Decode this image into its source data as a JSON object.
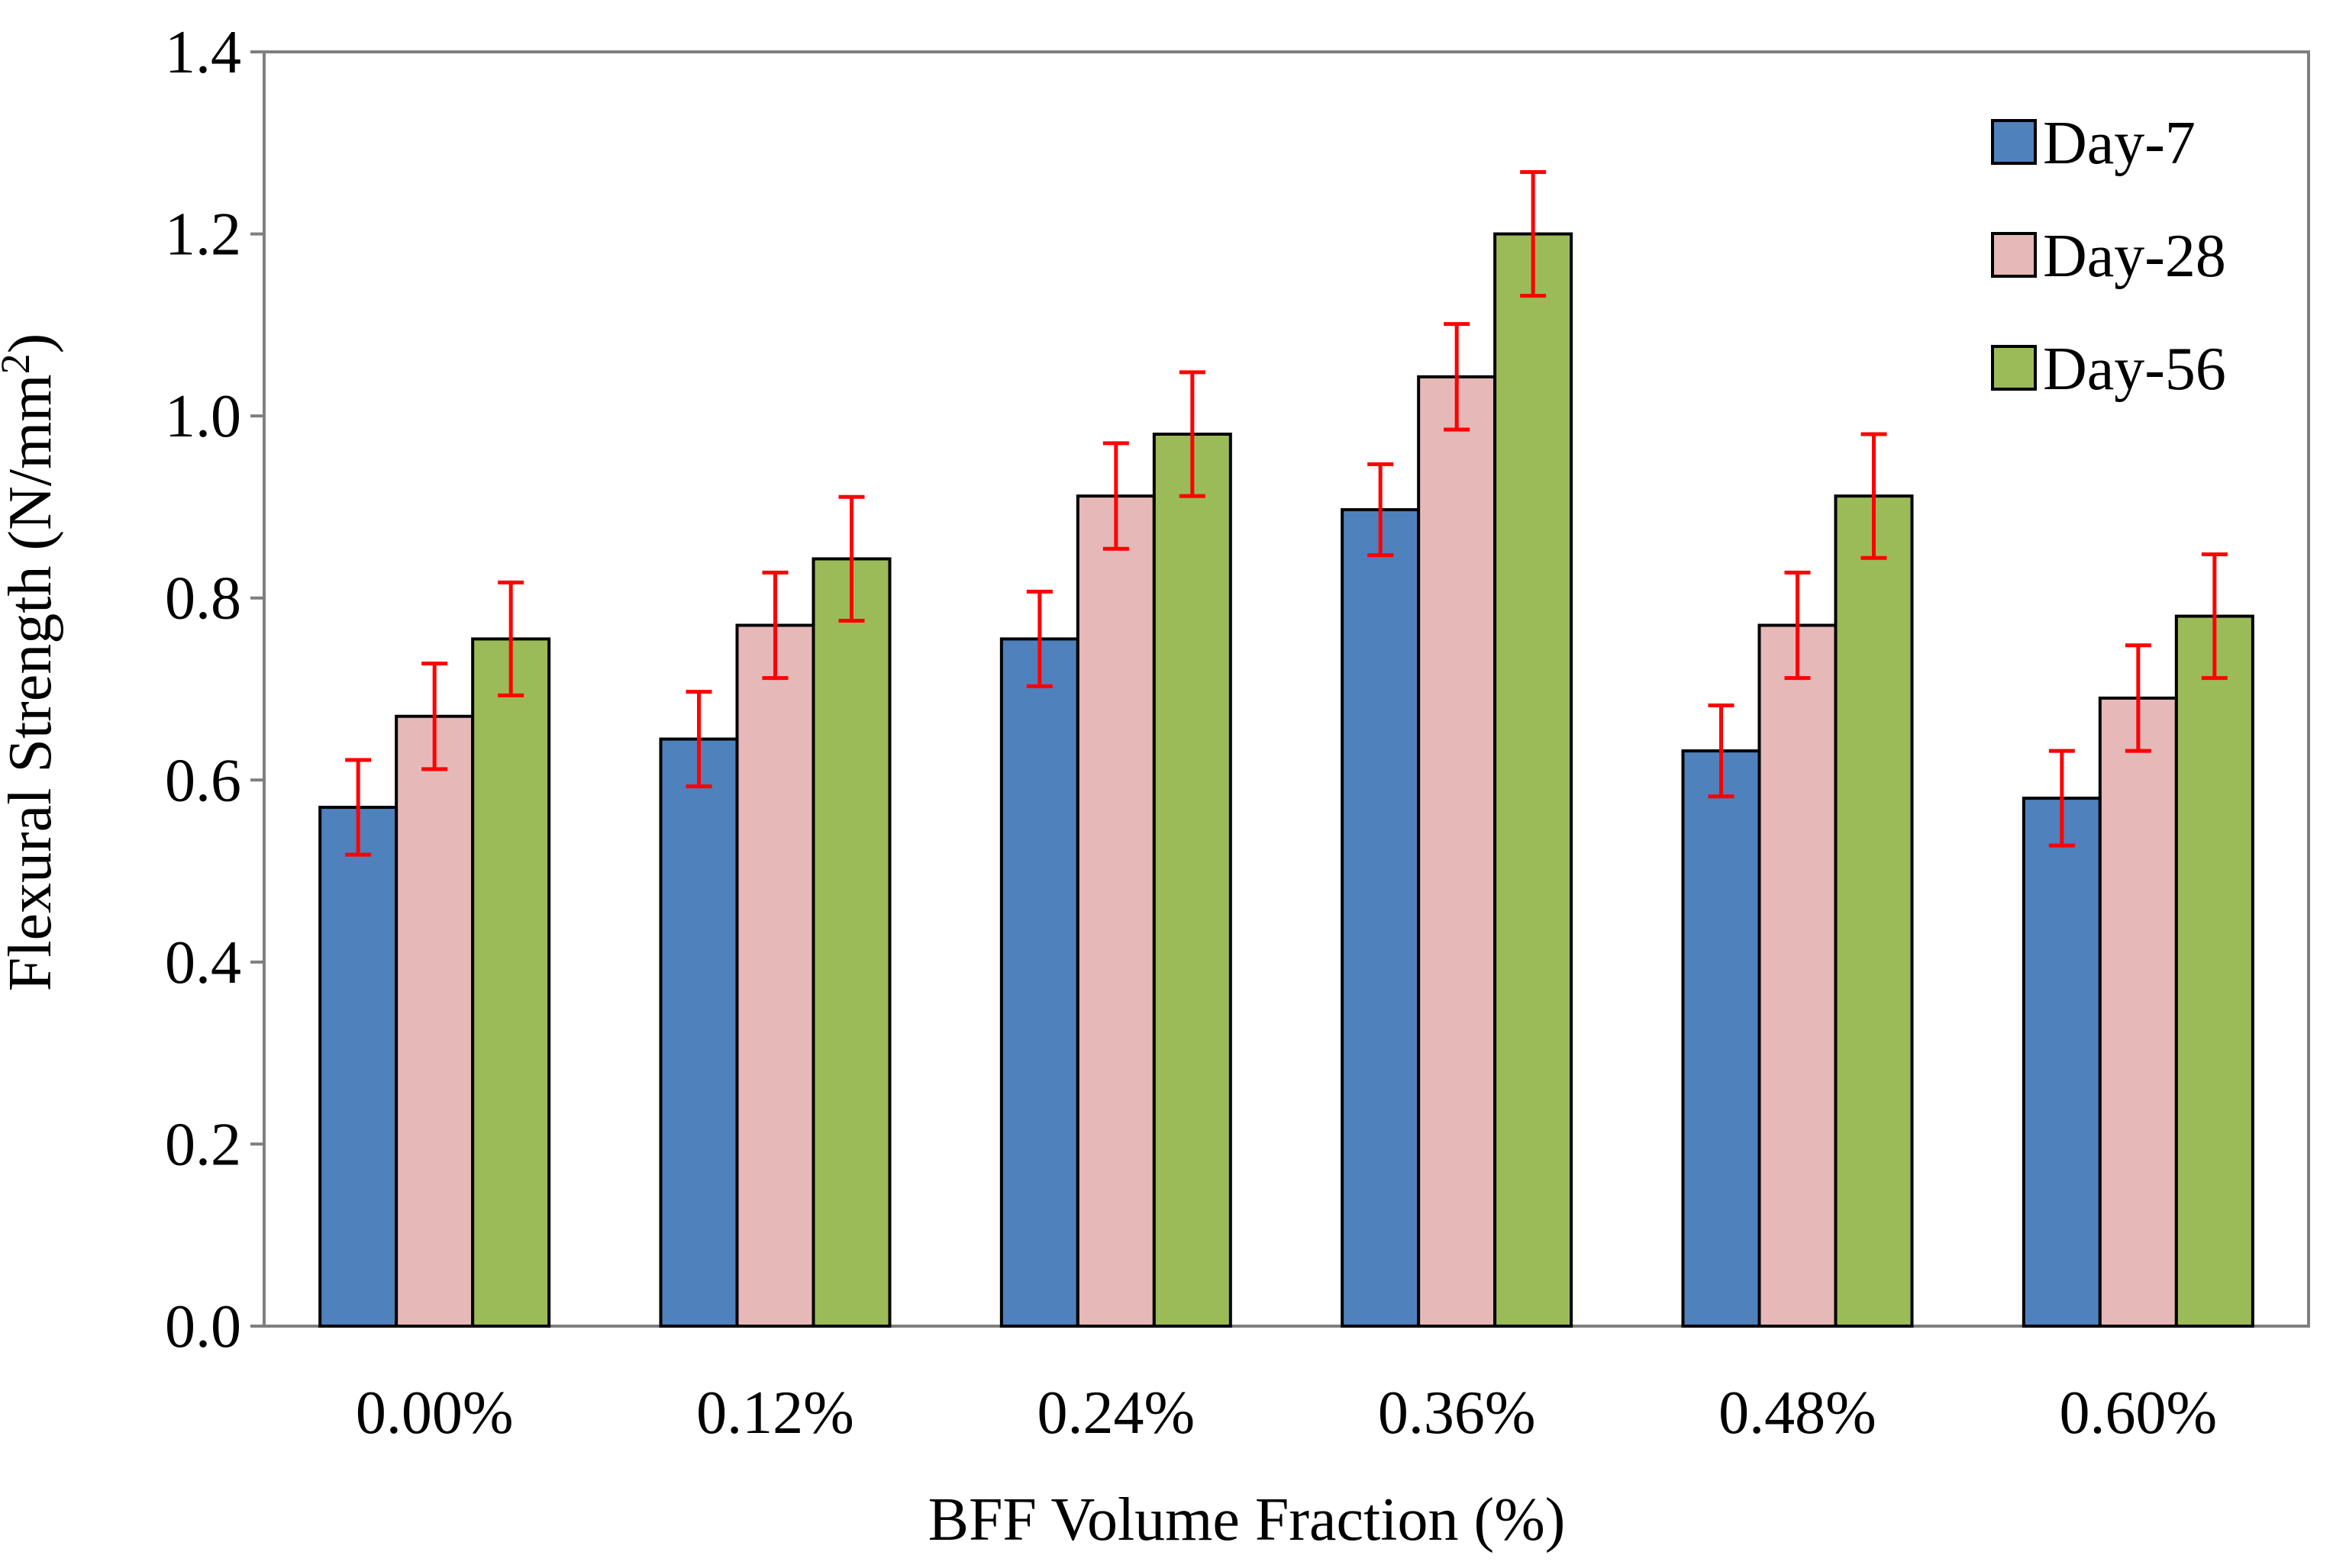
{
  "chart_data": {
    "type": "bar",
    "xlabel": "BFF Volume Fraction (%)",
    "ylabel_main": "Flexural Strength (N/mm",
    "ylabel_sup": "2",
    "ylabel_close": ")",
    "ylim": [
      0,
      1.4
    ],
    "ytick_step": 0.2,
    "yticks": [
      "0.0",
      "0.2",
      "0.4",
      "0.6",
      "0.8",
      "1.0",
      "1.2",
      "1.4"
    ],
    "grid": false,
    "legend_position": "top-right",
    "categories": [
      "0.00%",
      "0.12%",
      "0.24%",
      "0.36%",
      "0.48%",
      "0.60%"
    ],
    "series": [
      {
        "name": "Day-7",
        "color": "#4f81bd",
        "values": [
          0.57,
          0.645,
          0.755,
          0.897,
          0.632,
          0.58
        ],
        "errors": [
          0.052,
          0.052,
          0.052,
          0.05,
          0.05,
          0.052
        ]
      },
      {
        "name": "Day-28",
        "color": "#e6b9b8",
        "values": [
          0.67,
          0.77,
          0.912,
          1.043,
          0.77,
          0.69
        ],
        "errors": [
          0.058,
          0.058,
          0.058,
          0.058,
          0.058,
          0.058
        ]
      },
      {
        "name": "Day-56",
        "color": "#9bbb59",
        "values": [
          0.755,
          0.843,
          0.98,
          1.2,
          0.912,
          0.78
        ],
        "errors": [
          0.062,
          0.068,
          0.068,
          0.068,
          0.068,
          0.068
        ]
      }
    ],
    "error_bar_color": "#ff0000",
    "axis_color": "#7f7f7f",
    "bar_outline_color": "#000000"
  }
}
